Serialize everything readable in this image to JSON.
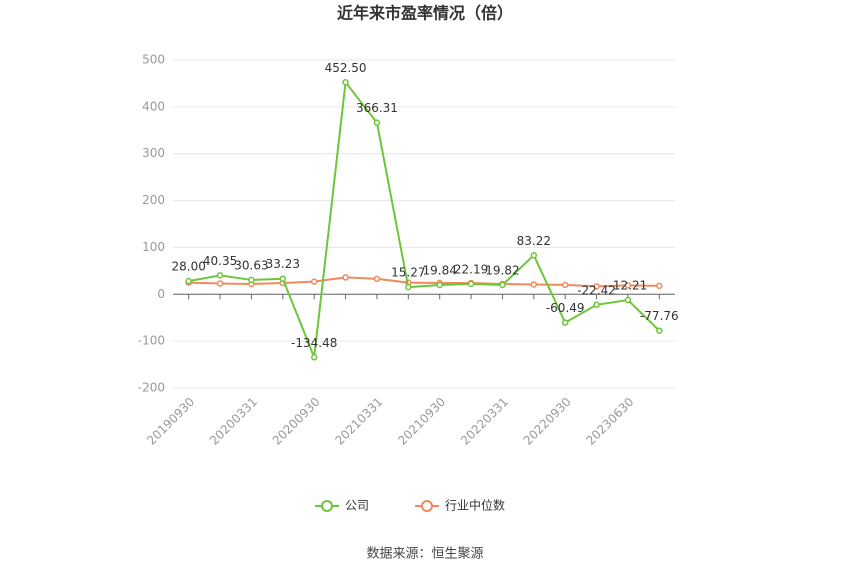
{
  "chart_data": {
    "type": "line",
    "title": "近年来市盈率情况（倍）",
    "categories": [
      "20190930",
      null,
      "20200331",
      null,
      "20200930",
      null,
      "20210331",
      null,
      "20210930",
      null,
      "20220331",
      null,
      "20220930",
      null,
      "20230630",
      null
    ],
    "series": [
      {
        "name": "公司",
        "color": "#6cc63a",
        "values": [
          28.0,
          40.35,
          30.63,
          33.23,
          -134.48,
          452.5,
          366.31,
          15.27,
          19.84,
          22.19,
          19.82,
          83.22,
          -60.49,
          -22.42,
          -12.21,
          -77.76
        ],
        "value_labels": [
          "28.00",
          "40.35",
          "30.63",
          "33.23",
          "-134.48",
          "452.50",
          "366.31",
          "15.27",
          "19.84",
          "22.19",
          "19.82",
          "83.22",
          "-60.49",
          "-22.42",
          "-12.21",
          "-77.76"
        ]
      },
      {
        "name": "行业中位数",
        "color": "#f08a5d",
        "values": [
          25,
          23,
          22,
          24,
          27,
          36,
          33,
          25,
          24,
          24,
          22,
          21,
          20,
          17,
          19,
          18
        ]
      }
    ],
    "ylim": [
      -200,
      500
    ],
    "yticks": [
      -200,
      -100,
      0,
      100,
      200,
      300,
      400,
      500
    ],
    "grid": true,
    "legend": "bottom",
    "source": "数据来源：恒生聚源"
  }
}
